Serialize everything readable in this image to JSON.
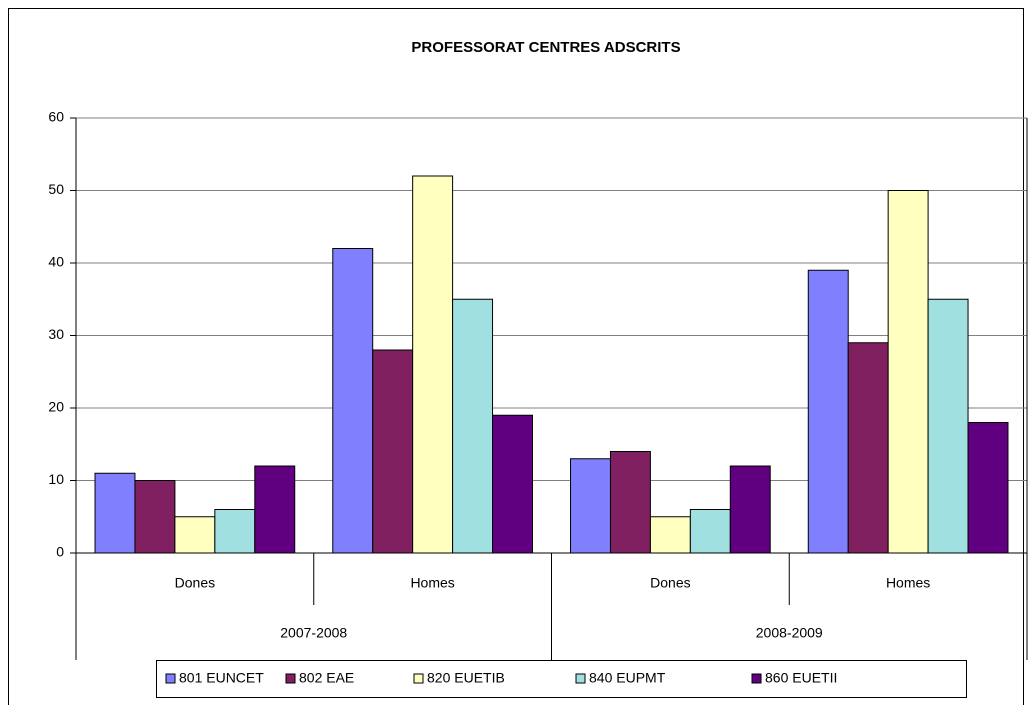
{
  "chart_data": {
    "type": "bar",
    "title": "PROFESSORAT CENTRES ADSCRITS",
    "categories": [
      "Dones",
      "Homes",
      "Dones",
      "Homes"
    ],
    "groups": [
      "2007-2008",
      "2008-2009"
    ],
    "series": [
      {
        "name": "801 EUNCET",
        "color": "#8080ff",
        "values": [
          11,
          42,
          13,
          39
        ]
      },
      {
        "name": "802 EAE",
        "color": "#802060",
        "values": [
          10,
          28,
          14,
          29
        ]
      },
      {
        "name": "820 EUETIB",
        "color": "#ffffc0",
        "values": [
          5,
          52,
          5,
          50
        ]
      },
      {
        "name": "840 EUPMT",
        "color": "#a0e0e0",
        "values": [
          6,
          35,
          6,
          35
        ]
      },
      {
        "name": "860 EUETII",
        "color": "#600080",
        "values": [
          12,
          19,
          12,
          18
        ]
      }
    ],
    "ylim": [
      0,
      60
    ],
    "yticks": [
      0,
      10,
      20,
      30,
      40,
      50,
      60
    ],
    "grid": true,
    "legend": "bottom"
  }
}
